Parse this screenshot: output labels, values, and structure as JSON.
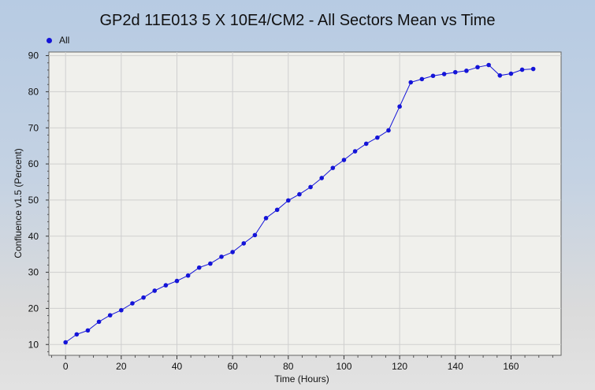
{
  "chart_data": {
    "type": "line",
    "title": "GP2d 11E013 5 X 10E4/CM2 - All Sectors Mean vs Time",
    "xlabel": "Time (Hours)",
    "ylabel": "Confluence v1.5 (Percent)",
    "xlim": [
      -6,
      178
    ],
    "ylim": [
      7,
      91
    ],
    "x_ticks": [
      0,
      20,
      40,
      60,
      80,
      100,
      120,
      140,
      160
    ],
    "y_ticks": [
      10,
      20,
      30,
      40,
      50,
      60,
      70,
      80,
      90
    ],
    "grid": true,
    "legend": "top-left",
    "series": [
      {
        "name": "All",
        "color": "#1414d8",
        "x": [
          0,
          4,
          8,
          12,
          16,
          20,
          24,
          28,
          32,
          36,
          40,
          44,
          48,
          52,
          56,
          60,
          64,
          68,
          72,
          76,
          80,
          84,
          88,
          92,
          96,
          100,
          104,
          108,
          112,
          116,
          120,
          124,
          128,
          132,
          136,
          140,
          144,
          148,
          152,
          156,
          160,
          164,
          168
        ],
        "y": [
          10.6,
          12.8,
          13.9,
          16.3,
          18.1,
          19.5,
          21.4,
          23.0,
          24.9,
          26.4,
          27.6,
          29.1,
          31.3,
          32.4,
          34.3,
          35.6,
          38.0,
          40.3,
          45.0,
          47.3,
          49.9,
          51.6,
          53.6,
          56.1,
          58.9,
          61.1,
          63.5,
          65.6,
          67.3,
          69.3,
          75.9,
          82.6,
          83.5,
          84.4,
          84.9,
          85.4,
          85.8,
          86.8,
          87.4,
          84.5,
          85.0,
          86.1,
          86.3
        ]
      }
    ]
  }
}
